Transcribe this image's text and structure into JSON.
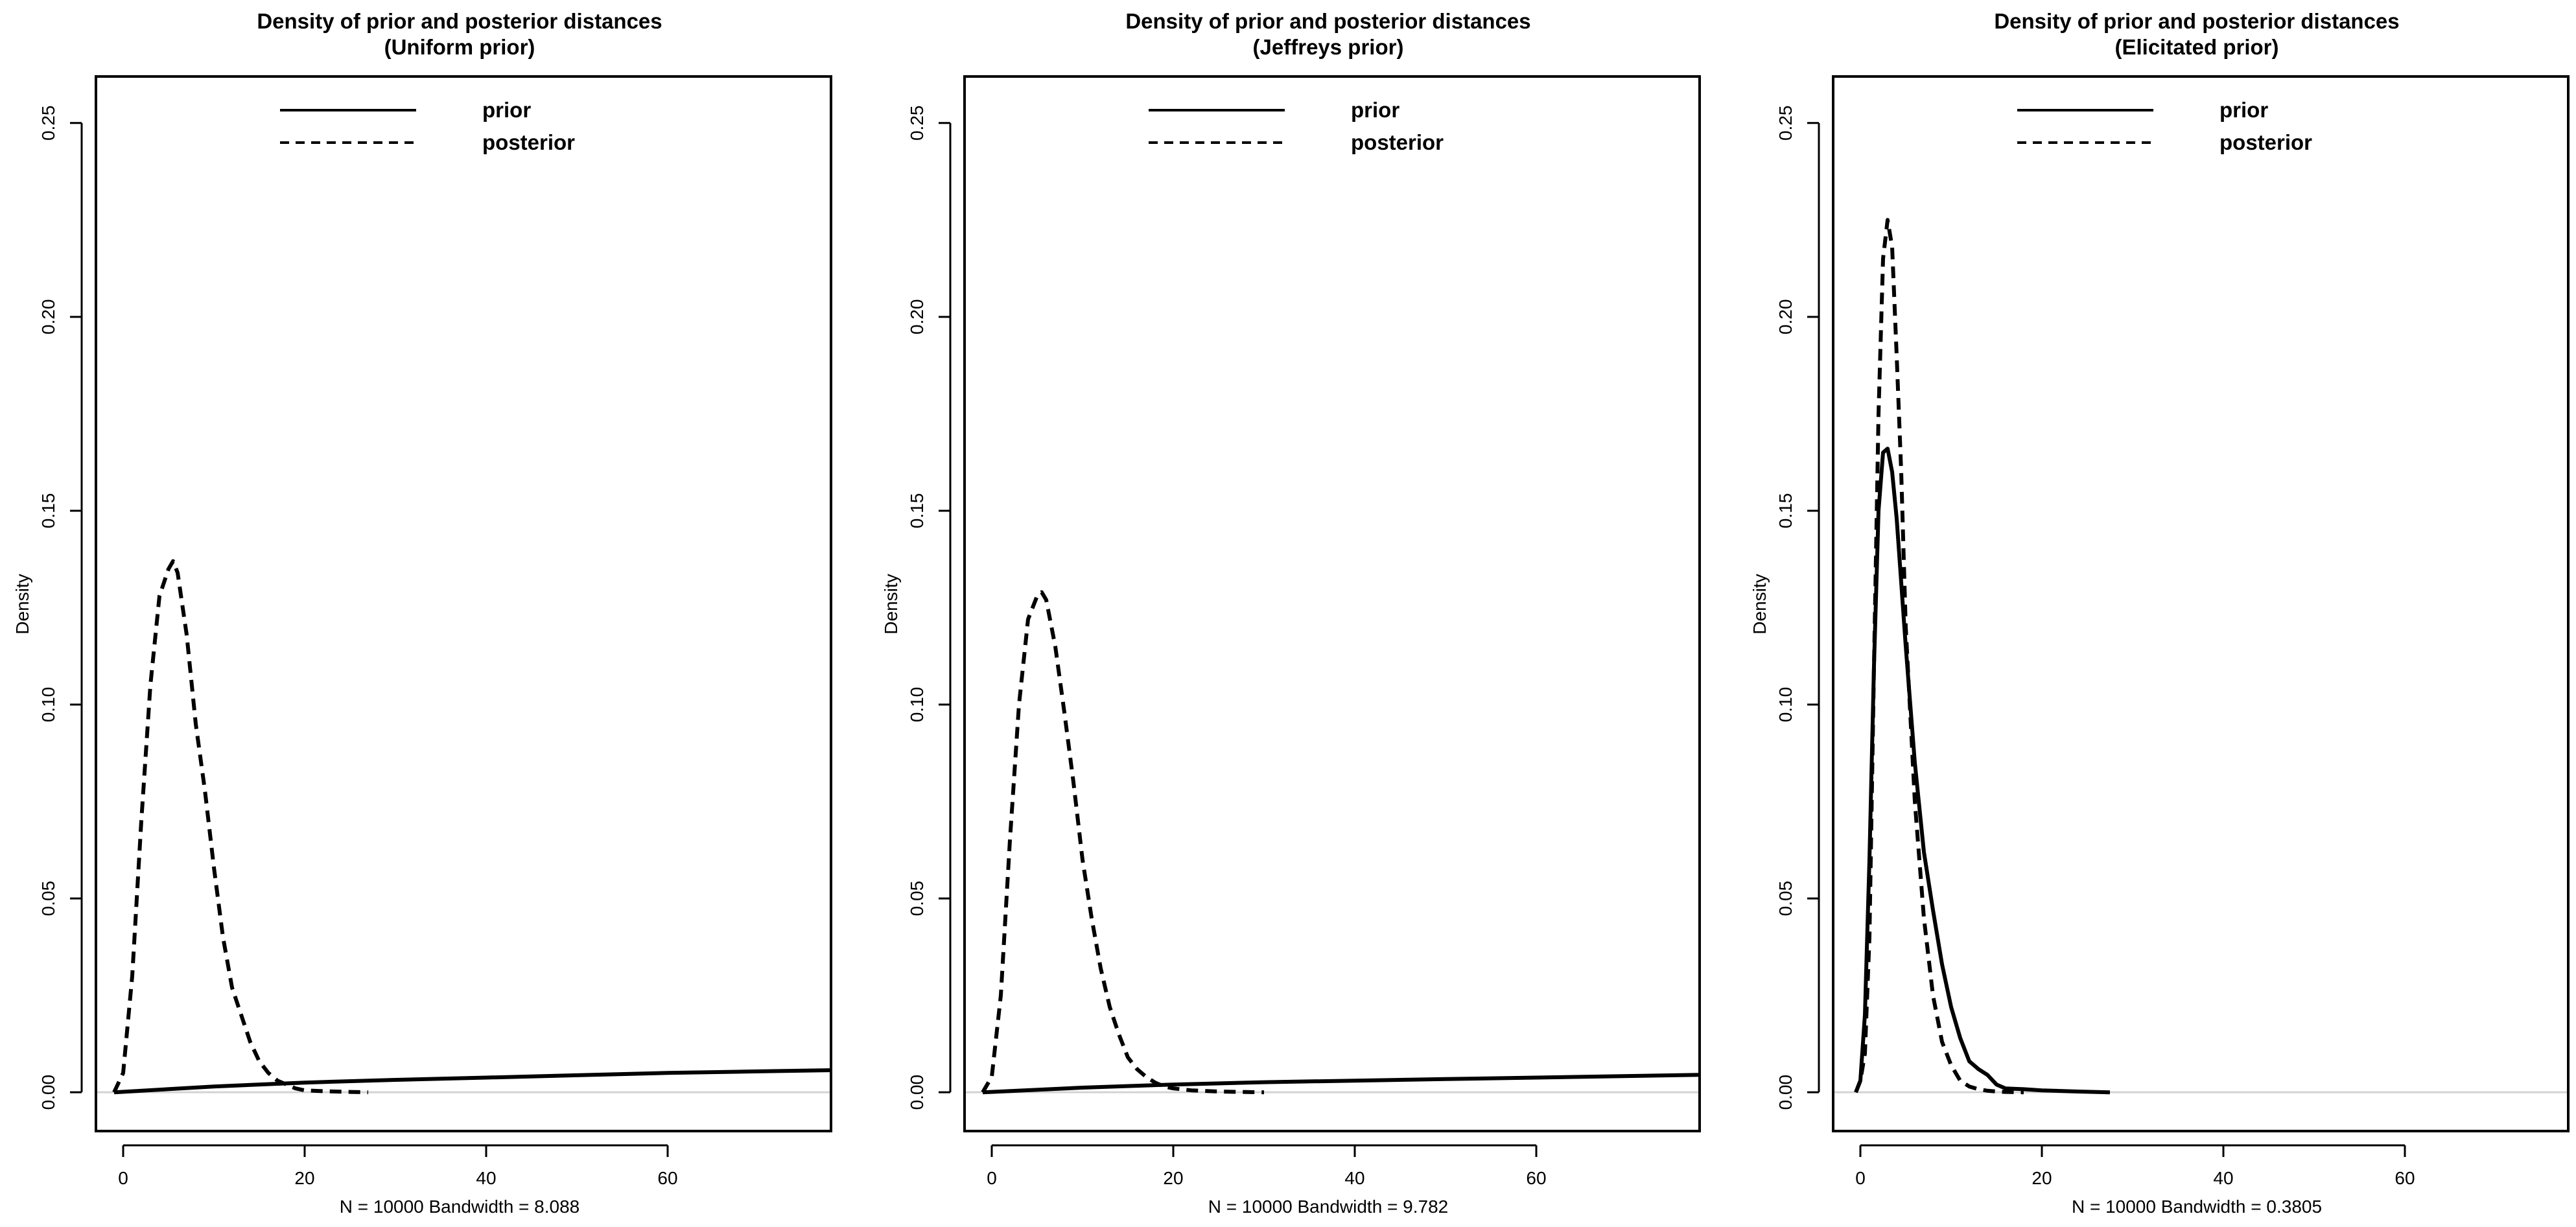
{
  "colors": {
    "line": "#000000",
    "zero_line": "#d3d3d3",
    "background": "#ffffff"
  },
  "chart_data": [
    {
      "type": "line",
      "title": "Density of prior and posterior distances",
      "subtitle": "(Uniform prior)",
      "xlabel": "N = 10000   Bandwidth = 8.088",
      "ylabel": "Density",
      "xlim": [
        -3,
        78
      ],
      "ylim": [
        -0.01,
        0.262
      ],
      "x_ticks": [
        0,
        20,
        40,
        60
      ],
      "y_ticks": [
        0.0,
        0.05,
        0.1,
        0.15,
        0.2,
        0.25
      ],
      "y_tick_labels": [
        "0.00",
        "0.05",
        "0.10",
        "0.15",
        "0.20",
        "0.25"
      ],
      "grid": false,
      "legend_position": "top-center",
      "series": [
        {
          "name": "prior",
          "style": "solid",
          "x": [
            -1,
            10,
            20,
            30,
            40,
            50,
            60,
            70,
            78
          ],
          "y": [
            0.0,
            0.0015,
            0.0025,
            0.0032,
            0.0038,
            0.0044,
            0.005,
            0.0054,
            0.0057
          ]
        },
        {
          "name": "posterior",
          "style": "dashed",
          "x": [
            -1,
            0,
            1,
            2,
            3,
            4,
            5,
            5.5,
            6,
            7,
            8,
            9,
            10,
            11,
            12,
            13,
            14,
            15,
            16,
            17,
            18,
            19,
            20,
            22,
            25,
            27
          ],
          "y": [
            0.0,
            0.005,
            0.03,
            0.07,
            0.105,
            0.128,
            0.135,
            0.137,
            0.134,
            0.118,
            0.095,
            0.078,
            0.058,
            0.04,
            0.027,
            0.02,
            0.013,
            0.008,
            0.005,
            0.003,
            0.002,
            0.001,
            0.0005,
            0.0003,
            0.0001,
            0.0
          ]
        }
      ]
    },
    {
      "type": "line",
      "title": "Density of prior and posterior distances",
      "subtitle": "(Jeffreys prior)",
      "xlabel": "N = 10000   Bandwidth = 9.782",
      "ylabel": "Density",
      "xlim": [
        -3,
        78
      ],
      "ylim": [
        -0.01,
        0.262
      ],
      "x_ticks": [
        0,
        20,
        40,
        60
      ],
      "y_ticks": [
        0.0,
        0.05,
        0.1,
        0.15,
        0.2,
        0.25
      ],
      "y_tick_labels": [
        "0.00",
        "0.05",
        "0.10",
        "0.15",
        "0.20",
        "0.25"
      ],
      "grid": false,
      "legend_position": "top-center",
      "series": [
        {
          "name": "prior",
          "style": "solid",
          "x": [
            -1,
            10,
            20,
            30,
            40,
            50,
            60,
            70,
            78
          ],
          "y": [
            0.0,
            0.0012,
            0.002,
            0.0026,
            0.003,
            0.0034,
            0.0038,
            0.0042,
            0.0045
          ]
        },
        {
          "name": "posterior",
          "style": "dashed",
          "x": [
            -1,
            0,
            1,
            2,
            3,
            4,
            5,
            5.5,
            6,
            7,
            8,
            9,
            10,
            11,
            12,
            13,
            14,
            15,
            16,
            17,
            18,
            19,
            20,
            22,
            25,
            30
          ],
          "y": [
            0.0,
            0.004,
            0.025,
            0.065,
            0.1,
            0.122,
            0.128,
            0.129,
            0.127,
            0.115,
            0.098,
            0.08,
            0.06,
            0.045,
            0.032,
            0.022,
            0.015,
            0.009,
            0.006,
            0.004,
            0.0025,
            0.0015,
            0.001,
            0.0005,
            0.0002,
            0.0
          ]
        }
      ]
    },
    {
      "type": "line",
      "title": "Density of prior and posterior distances",
      "subtitle": "(Elicitated prior)",
      "xlabel": "N = 10000   Bandwidth = 0.3805",
      "ylabel": "Density",
      "xlim": [
        -3,
        78
      ],
      "ylim": [
        -0.01,
        0.262
      ],
      "x_ticks": [
        0,
        20,
        40,
        60
      ],
      "y_ticks": [
        0.0,
        0.05,
        0.1,
        0.15,
        0.2,
        0.25
      ],
      "y_tick_labels": [
        "0.00",
        "0.05",
        "0.10",
        "0.15",
        "0.20",
        "0.25"
      ],
      "grid": false,
      "legend_position": "top-center",
      "series": [
        {
          "name": "prior",
          "style": "solid",
          "x": [
            -0.5,
            0,
            0.5,
            1,
            1.5,
            2,
            2.5,
            3,
            3.5,
            4,
            5,
            6,
            7,
            8,
            9,
            10,
            11,
            12,
            13,
            14,
            15,
            16,
            18,
            20,
            24,
            27.5
          ],
          "y": [
            0.0,
            0.003,
            0.02,
            0.06,
            0.11,
            0.15,
            0.165,
            0.166,
            0.16,
            0.148,
            0.115,
            0.085,
            0.062,
            0.047,
            0.033,
            0.022,
            0.014,
            0.008,
            0.006,
            0.0045,
            0.002,
            0.001,
            0.0008,
            0.0005,
            0.0002,
            0.0
          ]
        },
        {
          "name": "posterior",
          "style": "dashed",
          "x": [
            -0.5,
            0,
            0.5,
            1,
            1.5,
            2,
            2.5,
            3,
            3.5,
            4,
            4.5,
            5,
            6,
            7,
            8,
            9,
            10,
            11,
            12,
            13,
            14,
            15,
            16,
            17,
            18
          ],
          "y": [
            0.0,
            0.003,
            0.01,
            0.04,
            0.11,
            0.175,
            0.215,
            0.225,
            0.218,
            0.19,
            0.16,
            0.12,
            0.075,
            0.045,
            0.025,
            0.013,
            0.007,
            0.003,
            0.0015,
            0.0008,
            0.0004,
            0.0002,
            0.0001,
            5e-05,
            0.0
          ]
        }
      ]
    }
  ]
}
